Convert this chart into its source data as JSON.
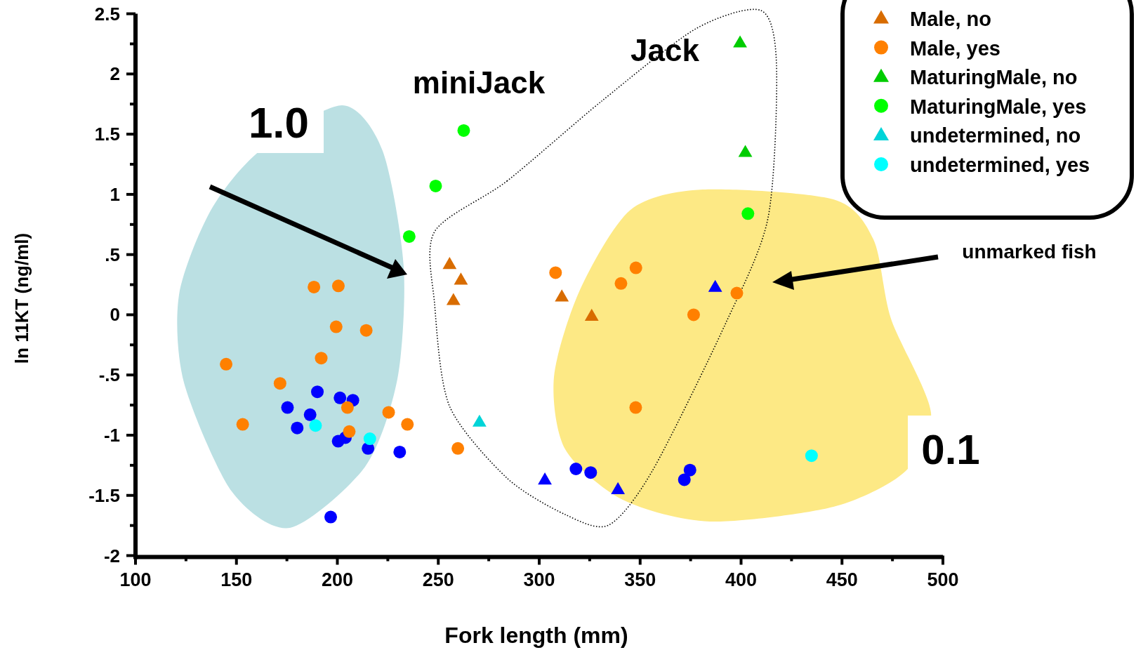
{
  "chart_data": {
    "type": "scatter",
    "xlabel": "Fork length (mm)",
    "ylabel": "ln 11KT (ng/ml)",
    "xlim": [
      100,
      500
    ],
    "ylim": [
      -2,
      2.5
    ],
    "xticks": [
      100,
      {
        "value": 125,
        "label": null
      },
      150,
      {
        "value": 175,
        "label": null
      },
      200,
      {
        "value": 225,
        "label": null
      },
      250,
      {
        "value": 275,
        "label": null
      },
      300,
      {
        "value": 325,
        "label": null
      },
      350,
      {
        "value": 375,
        "label": null
      },
      400,
      {
        "value": 425,
        "label": null
      },
      450,
      {
        "value": 475,
        "label": null
      },
      500
    ],
    "yticks": [
      {
        "value": -2,
        "label": "-2"
      },
      {
        "value": -1.75,
        "label": null
      },
      {
        "value": -1.5,
        "label": "-1.5"
      },
      {
        "value": -1.25,
        "label": null
      },
      {
        "value": -1,
        "label": "-1"
      },
      {
        "value": -0.75,
        "label": null
      },
      {
        "value": -0.5,
        "label": "-.5"
      },
      {
        "value": -0.25,
        "label": null
      },
      0,
      {
        "value": 0.25,
        "label": null
      },
      {
        "value": 0.5,
        "label": ".5"
      },
      {
        "value": 0.75,
        "label": null
      },
      1,
      {
        "value": 1.25,
        "label": null
      },
      1.5,
      {
        "value": 1.75,
        "label": null
      },
      2,
      {
        "value": 2.25,
        "label": null
      },
      2.5
    ],
    "grid": false,
    "legend": "top right",
    "annotations": [
      "1.0",
      "miniJack",
      "Jack",
      "unmarked fish",
      "0.1"
    ],
    "series": [
      {
        "color": "#0000ff",
        "marker": "circle",
        "x": [
          190.1,
          175.3,
          186.5,
          180.1,
          201.3,
          207.7,
          204.0,
          200.4,
          215.2,
          230.9,
          196.7,
          318.2,
          325.5,
          374.7,
          371.9
        ],
        "values": [
          -0.64,
          -0.77,
          -0.83,
          -0.94,
          -0.69,
          -0.71,
          -1.02,
          -1.05,
          -1.11,
          -1.14,
          -1.68,
          -1.28,
          -1.31,
          -1.29,
          -1.37
        ]
      },
      {
        "color": "#0000ff",
        "marker": "triangle",
        "x": [
          302.8,
          339.0,
          387.2
        ],
        "values": [
          -1.37,
          -1.45,
          0.23
        ]
      },
      {
        "name": "Male, no",
        "color": "#d86c00",
        "marker": "triangle",
        "x": [
          255.6,
          261.2,
          257.5,
          311.2,
          326.0
        ],
        "values": [
          0.42,
          0.29,
          0.12,
          0.15,
          -0.01
        ]
      },
      {
        "name": "Male, yes",
        "color": "#ff8000",
        "marker": "circle",
        "x": [
          188.4,
          200.5,
          199.4,
          214.3,
          192.0,
          144.9,
          171.6,
          205.0,
          153.1,
          205.9,
          225.4,
          234.7,
          259.7,
          308.1,
          347.9,
          340.5,
          397.9,
          376.5,
          347.8
        ],
        "values": [
          0.23,
          0.24,
          -0.1,
          -0.13,
          -0.36,
          -0.41,
          -0.57,
          -0.77,
          -0.91,
          -0.97,
          -0.81,
          -0.91,
          -1.11,
          0.35,
          0.39,
          0.26,
          0.18,
          0.0,
          -0.77
        ]
      },
      {
        "name": "MaturingMale, no",
        "color": "#00cc00",
        "marker": "triangle",
        "x": [
          399.5,
          402.1
        ],
        "values": [
          2.26,
          1.35
        ]
      },
      {
        "name": "MaturingMale, yes",
        "color": "#00ff00",
        "marker": "circle",
        "x": [
          262.6,
          248.7,
          403.4,
          235.6
        ],
        "values": [
          1.53,
          1.07,
          0.84,
          0.65
        ]
      },
      {
        "name": "undetermined, no",
        "color": "#00d4d8",
        "marker": "triangle",
        "x": [
          270.4
        ],
        "values": [
          -0.89
        ]
      },
      {
        "name": "undetermined, yes",
        "color": "#00ffff",
        "marker": "circle",
        "x": [
          189.2,
          216.1,
          434.9
        ],
        "values": [
          -0.92,
          -1.03,
          -1.17
        ]
      }
    ]
  }
}
